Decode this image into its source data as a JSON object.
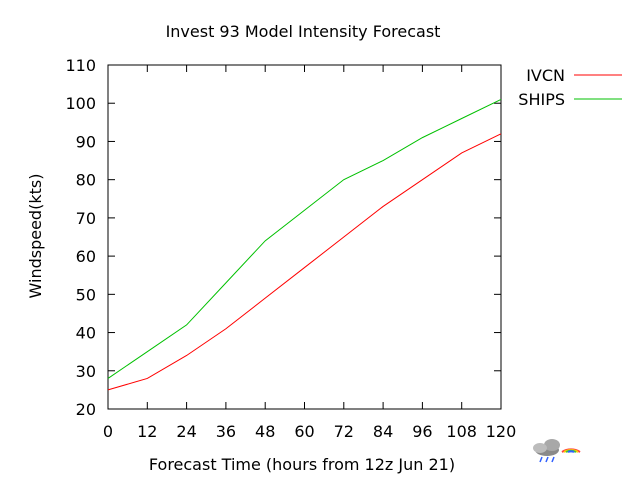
{
  "chart_data": {
    "type": "line",
    "title": "Invest 93 Model Intensity Forecast",
    "xlabel": "Forecast Time  (hours from 12z  Jun 21)",
    "ylabel": "Windspeed(kts)",
    "x": [
      0,
      12,
      24,
      36,
      48,
      60,
      72,
      84,
      96,
      108,
      120
    ],
    "xlim": [
      0,
      120
    ],
    "ylim": [
      20,
      110
    ],
    "xticks": [
      0,
      12,
      24,
      36,
      48,
      60,
      72,
      84,
      96,
      108,
      120
    ],
    "yticks": [
      20,
      30,
      40,
      50,
      60,
      70,
      80,
      90,
      100,
      110
    ],
    "grid": false,
    "legend_position": "outside-right",
    "series": [
      {
        "name": "IVCN",
        "color": "#ff0000",
        "values": [
          25,
          28,
          34,
          41,
          49,
          57,
          65,
          73,
          80,
          87,
          92
        ]
      },
      {
        "name": "SHIPS",
        "color": "#00c000",
        "values": [
          28,
          35,
          42,
          53,
          64,
          72,
          80,
          85,
          91,
          96,
          101
        ]
      }
    ]
  },
  "logo": {
    "name": "weather-cloud-rainbow-logo"
  }
}
